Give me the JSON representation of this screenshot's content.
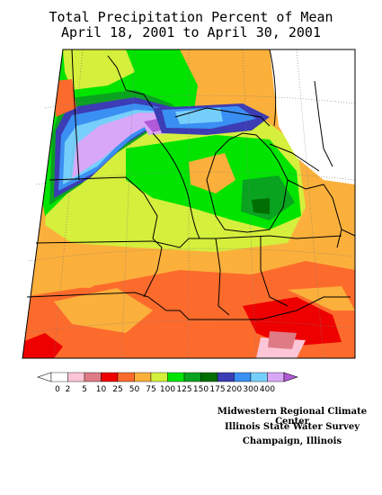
{
  "title": {
    "line1": "Total Precipitation Percent of Mean",
    "line2": "April 18, 2001 to April 30, 2001"
  },
  "legend": {
    "bins": [
      {
        "label": "0",
        "color": "#ffffff"
      },
      {
        "label": "2",
        "color": "#fcc6d6"
      },
      {
        "label": "5",
        "color": "#de7b84"
      },
      {
        "label": "10",
        "color": "#ee0000"
      },
      {
        "label": "25",
        "color": "#fd6b2c"
      },
      {
        "label": "50",
        "color": "#fbb03b"
      },
      {
        "label": "75",
        "color": "#d4ef3c"
      },
      {
        "label": "100",
        "color": "#00e400"
      },
      {
        "label": "125",
        "color": "#09a31f"
      },
      {
        "label": "150",
        "color": "#016e03"
      },
      {
        "label": "175",
        "color": "#3c3cb4"
      },
      {
        "label": "200",
        "color": "#3a8ff2"
      },
      {
        "label": "300",
        "color": "#76cffb"
      },
      {
        "label": "400",
        "color": "#d9a7f7"
      }
    ],
    "over_color": "#b15ad8"
  },
  "credits": {
    "line1": "Midwestern Regional Climate Center",
    "line2": "Illinois State Water Survey",
    "line3": "Champaign, Illinois"
  }
}
